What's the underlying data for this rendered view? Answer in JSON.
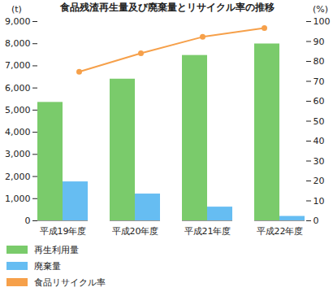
{
  "chart_data": {
    "type": "bar",
    "title": "食品残渣再生量及び廃棄量とリサイクル率の推移",
    "ylabel": "(t)",
    "y2label": "(%)",
    "categories": [
      "平成19年度",
      "平成20年度",
      "平成21年度",
      "平成22年度"
    ],
    "series": [
      {
        "name": "再生利用量",
        "color": "#7acb6b",
        "values": [
          5350,
          6400,
          7470,
          7990
        ]
      },
      {
        "name": "廃棄量",
        "color": "#66bdf2",
        "values": [
          1760,
          1210,
          620,
          200
        ]
      },
      {
        "name": "食品リサイクル率",
        "type": "line",
        "axis": "y2",
        "color": "#f6a04a",
        "marker": "circle",
        "values": [
          74.8,
          84.1,
          92.3,
          96.7
        ]
      }
    ],
    "ylim": [
      0,
      9000
    ],
    "yticks": [
      0,
      {
        "value": 1000,
        "label": "1,000"
      },
      {
        "value": 2000,
        "label": "2,000"
      },
      {
        "value": 3000,
        "label": "3,000"
      },
      {
        "value": 4000,
        "label": "4,000"
      },
      {
        "value": 5000,
        "label": "5,000"
      },
      {
        "value": 6000,
        "label": "6,000"
      },
      {
        "value": 7000,
        "label": "7,000"
      },
      {
        "value": 8000,
        "label": "8,000"
      },
      {
        "value": 9000,
        "label": "9,000"
      }
    ],
    "y2lim": [
      0,
      100
    ],
    "y2ticks": [
      0,
      10,
      20,
      30,
      40,
      50,
      60,
      70,
      80,
      90,
      100
    ],
    "grid": false,
    "legend": "bottom"
  }
}
